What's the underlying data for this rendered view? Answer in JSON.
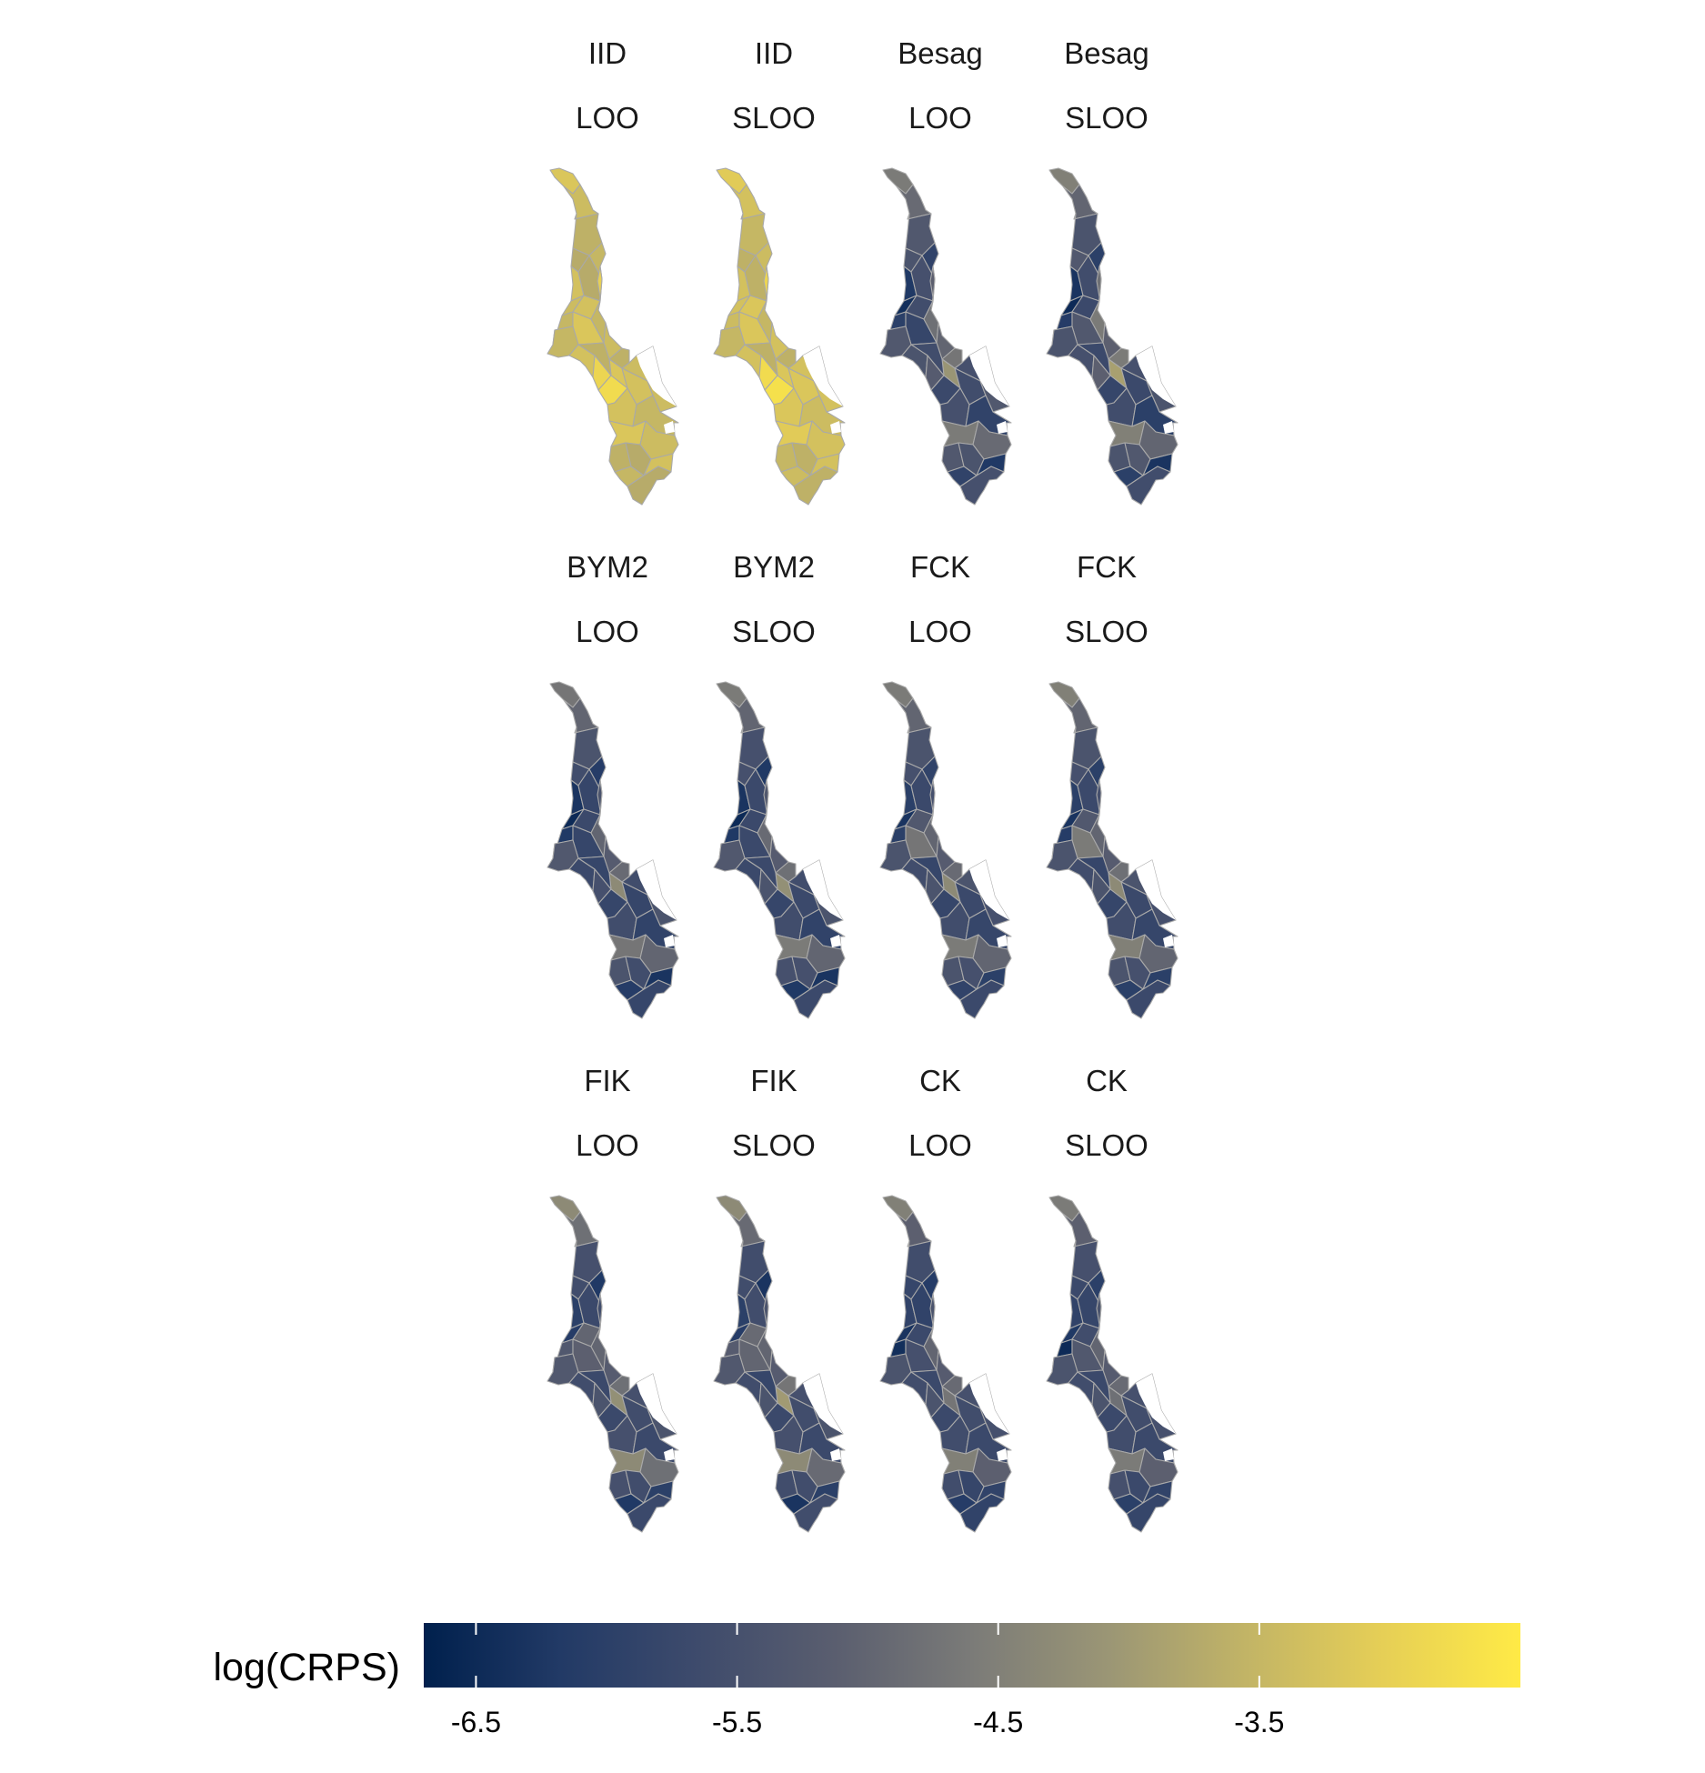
{
  "chart_data": {
    "type": "choropleth",
    "facet_layout": {
      "rows": 3,
      "cols": 4
    },
    "color_scale": {
      "name": "log(CRPS)",
      "palette": "cividis",
      "colors": [
        "#00204d",
        "#223a66",
        "#3e4b6c",
        "#5a5e6f",
        "#7b7b78",
        "#9b9675",
        "#c2b466",
        "#e6cf56",
        "#ffea46"
      ],
      "min": -6.7,
      "max": -2.5
    },
    "legend": {
      "title": "log(CRPS)",
      "position": "bottom",
      "ticks": [
        -6.5,
        -5.5,
        -4.5,
        -3.5
      ],
      "tick_labels": [
        "-6.5",
        "-5.5",
        "-4.5",
        "-3.5"
      ]
    },
    "panels": [
      {
        "model": "IID",
        "cv": "LOO",
        "values": [
          -3.2,
          -3.4,
          -3.6,
          -3.7,
          -3.3,
          -3.5,
          -3.7,
          -3.4,
          -3.5,
          -3.3,
          -3.2,
          -3.0,
          -3.5,
          -3.4,
          -3.6,
          -3.4,
          -3.2,
          -3.5,
          -3.6,
          -3.3,
          -2.9,
          -2.8,
          -3.3,
          -3.4,
          -3.3,
          -3.5
        ]
      },
      {
        "model": "IID",
        "cv": "SLOO",
        "values": [
          -3.1,
          -3.3,
          -3.5,
          -3.6,
          -3.3,
          -3.4,
          -3.6,
          -3.3,
          -3.4,
          -3.2,
          -3.2,
          -2.9,
          -3.5,
          -3.3,
          -3.6,
          -3.3,
          -3.2,
          -3.5,
          -3.6,
          -3.3,
          -2.8,
          -2.7,
          -3.2,
          -3.3,
          -3.2,
          -3.4
        ]
      },
      {
        "model": "Besag",
        "cv": "LOO",
        "values": [
          -4.6,
          -4.9,
          -5.3,
          -5.4,
          -6.2,
          -5.9,
          -5.5,
          -6.4,
          -6.0,
          -5.6,
          -5.8,
          -5.1,
          -4.8,
          -5.0,
          -4.7,
          -5.5,
          -4.1,
          -5.3,
          -5.6,
          -5.4,
          -5.2,
          -5.7,
          -5.6,
          -5.3,
          -5.5,
          -5.9
        ]
      },
      {
        "model": "Besag",
        "cv": "SLOO",
        "values": [
          -4.5,
          -5.0,
          -5.4,
          -5.3,
          -6.3,
          -6.0,
          -5.6,
          -6.5,
          -6.1,
          -5.7,
          -5.3,
          -4.8,
          -4.6,
          -5.1,
          -4.6,
          -5.5,
          -3.9,
          -5.4,
          -5.7,
          -5.5,
          -5.1,
          -5.8,
          -5.7,
          -5.4,
          -5.6,
          -6.0
        ]
      },
      {
        "model": "BYM2",
        "cv": "LOO",
        "values": [
          -4.7,
          -5.0,
          -5.4,
          -5.6,
          -6.3,
          -6.1,
          -5.8,
          -6.5,
          -6.2,
          -5.7,
          -5.8,
          -5.4,
          -5.0,
          -5.2,
          -4.9,
          -5.6,
          -4.3,
          -5.3,
          -5.8,
          -5.7,
          -5.5,
          -5.8,
          -5.8,
          -5.4,
          -5.6,
          -5.9
        ]
      },
      {
        "model": "BYM2",
        "cv": "SLOO",
        "values": [
          -4.6,
          -5.0,
          -5.5,
          -5.5,
          -6.3,
          -6.2,
          -5.7,
          -6.5,
          -6.2,
          -5.7,
          -5.7,
          -5.3,
          -4.9,
          -5.2,
          -4.8,
          -5.6,
          -4.2,
          -5.3,
          -5.7,
          -5.7,
          -5.4,
          -5.8,
          -5.7,
          -5.4,
          -5.6,
          -5.9
        ]
      },
      {
        "model": "FCK",
        "cv": "LOO",
        "values": [
          -4.6,
          -5.0,
          -5.4,
          -5.5,
          -6.0,
          -5.9,
          -5.7,
          -6.3,
          -6.0,
          -5.3,
          -4.7,
          -5.5,
          -5.0,
          -5.2,
          -4.9,
          -5.4,
          -4.3,
          -5.4,
          -5.8,
          -5.6,
          -5.4,
          -5.8,
          -5.7,
          -5.5,
          -5.6,
          -5.8
        ]
      },
      {
        "model": "FCK",
        "cv": "SLOO",
        "values": [
          -4.5,
          -5.0,
          -5.4,
          -5.5,
          -6.0,
          -6.0,
          -5.7,
          -6.3,
          -6.1,
          -5.3,
          -4.6,
          -5.5,
          -5.0,
          -5.2,
          -4.8,
          -5.4,
          -4.3,
          -5.4,
          -5.8,
          -5.6,
          -5.4,
          -5.8,
          -5.7,
          -5.5,
          -5.6,
          -5.8
        ]
      },
      {
        "model": "FIK",
        "cv": "LOO",
        "values": [
          -4.3,
          -4.8,
          -5.5,
          -5.6,
          -6.0,
          -6.2,
          -5.7,
          -6.1,
          -5.3,
          -5.0,
          -5.1,
          -5.6,
          -5.0,
          -5.2,
          -4.8,
          -5.5,
          -4.2,
          -5.3,
          -5.7,
          -5.6,
          -5.4,
          -5.7,
          -5.6,
          -5.4,
          -5.5,
          -5.7
        ]
      },
      {
        "model": "FIK",
        "cv": "SLOO",
        "values": [
          -4.3,
          -4.9,
          -5.6,
          -5.6,
          -6.0,
          -6.3,
          -5.6,
          -6.1,
          -5.2,
          -4.9,
          -5.0,
          -5.4,
          -5.0,
          -5.2,
          -4.7,
          -5.5,
          -4.0,
          -5.3,
          -5.8,
          -5.6,
          -5.4,
          -5.7,
          -5.6,
          -5.4,
          -5.5,
          -5.7
        ]
      },
      {
        "model": "CK",
        "cv": "LOO",
        "values": [
          -4.5,
          -5.1,
          -5.6,
          -5.8,
          -5.9,
          -6.1,
          -5.9,
          -6.3,
          -6.4,
          -5.7,
          -5.5,
          -5.4,
          -5.0,
          -5.2,
          -4.9,
          -5.5,
          -4.7,
          -5.4,
          -5.7,
          -5.6,
          -5.4,
          -5.7,
          -5.6,
          -5.5,
          -5.6,
          -5.7
        ]
      },
      {
        "model": "CK",
        "cv": "SLOO",
        "values": [
          -4.6,
          -5.1,
          -5.5,
          -5.7,
          -5.9,
          -6.0,
          -5.8,
          -6.2,
          -6.5,
          -5.6,
          -5.3,
          -5.4,
          -5.0,
          -5.2,
          -4.9,
          -5.5,
          -4.8,
          -5.4,
          -5.7,
          -5.6,
          -5.4,
          -5.7,
          -5.6,
          -5.5,
          -5.6,
          -5.7
        ]
      }
    ]
  }
}
